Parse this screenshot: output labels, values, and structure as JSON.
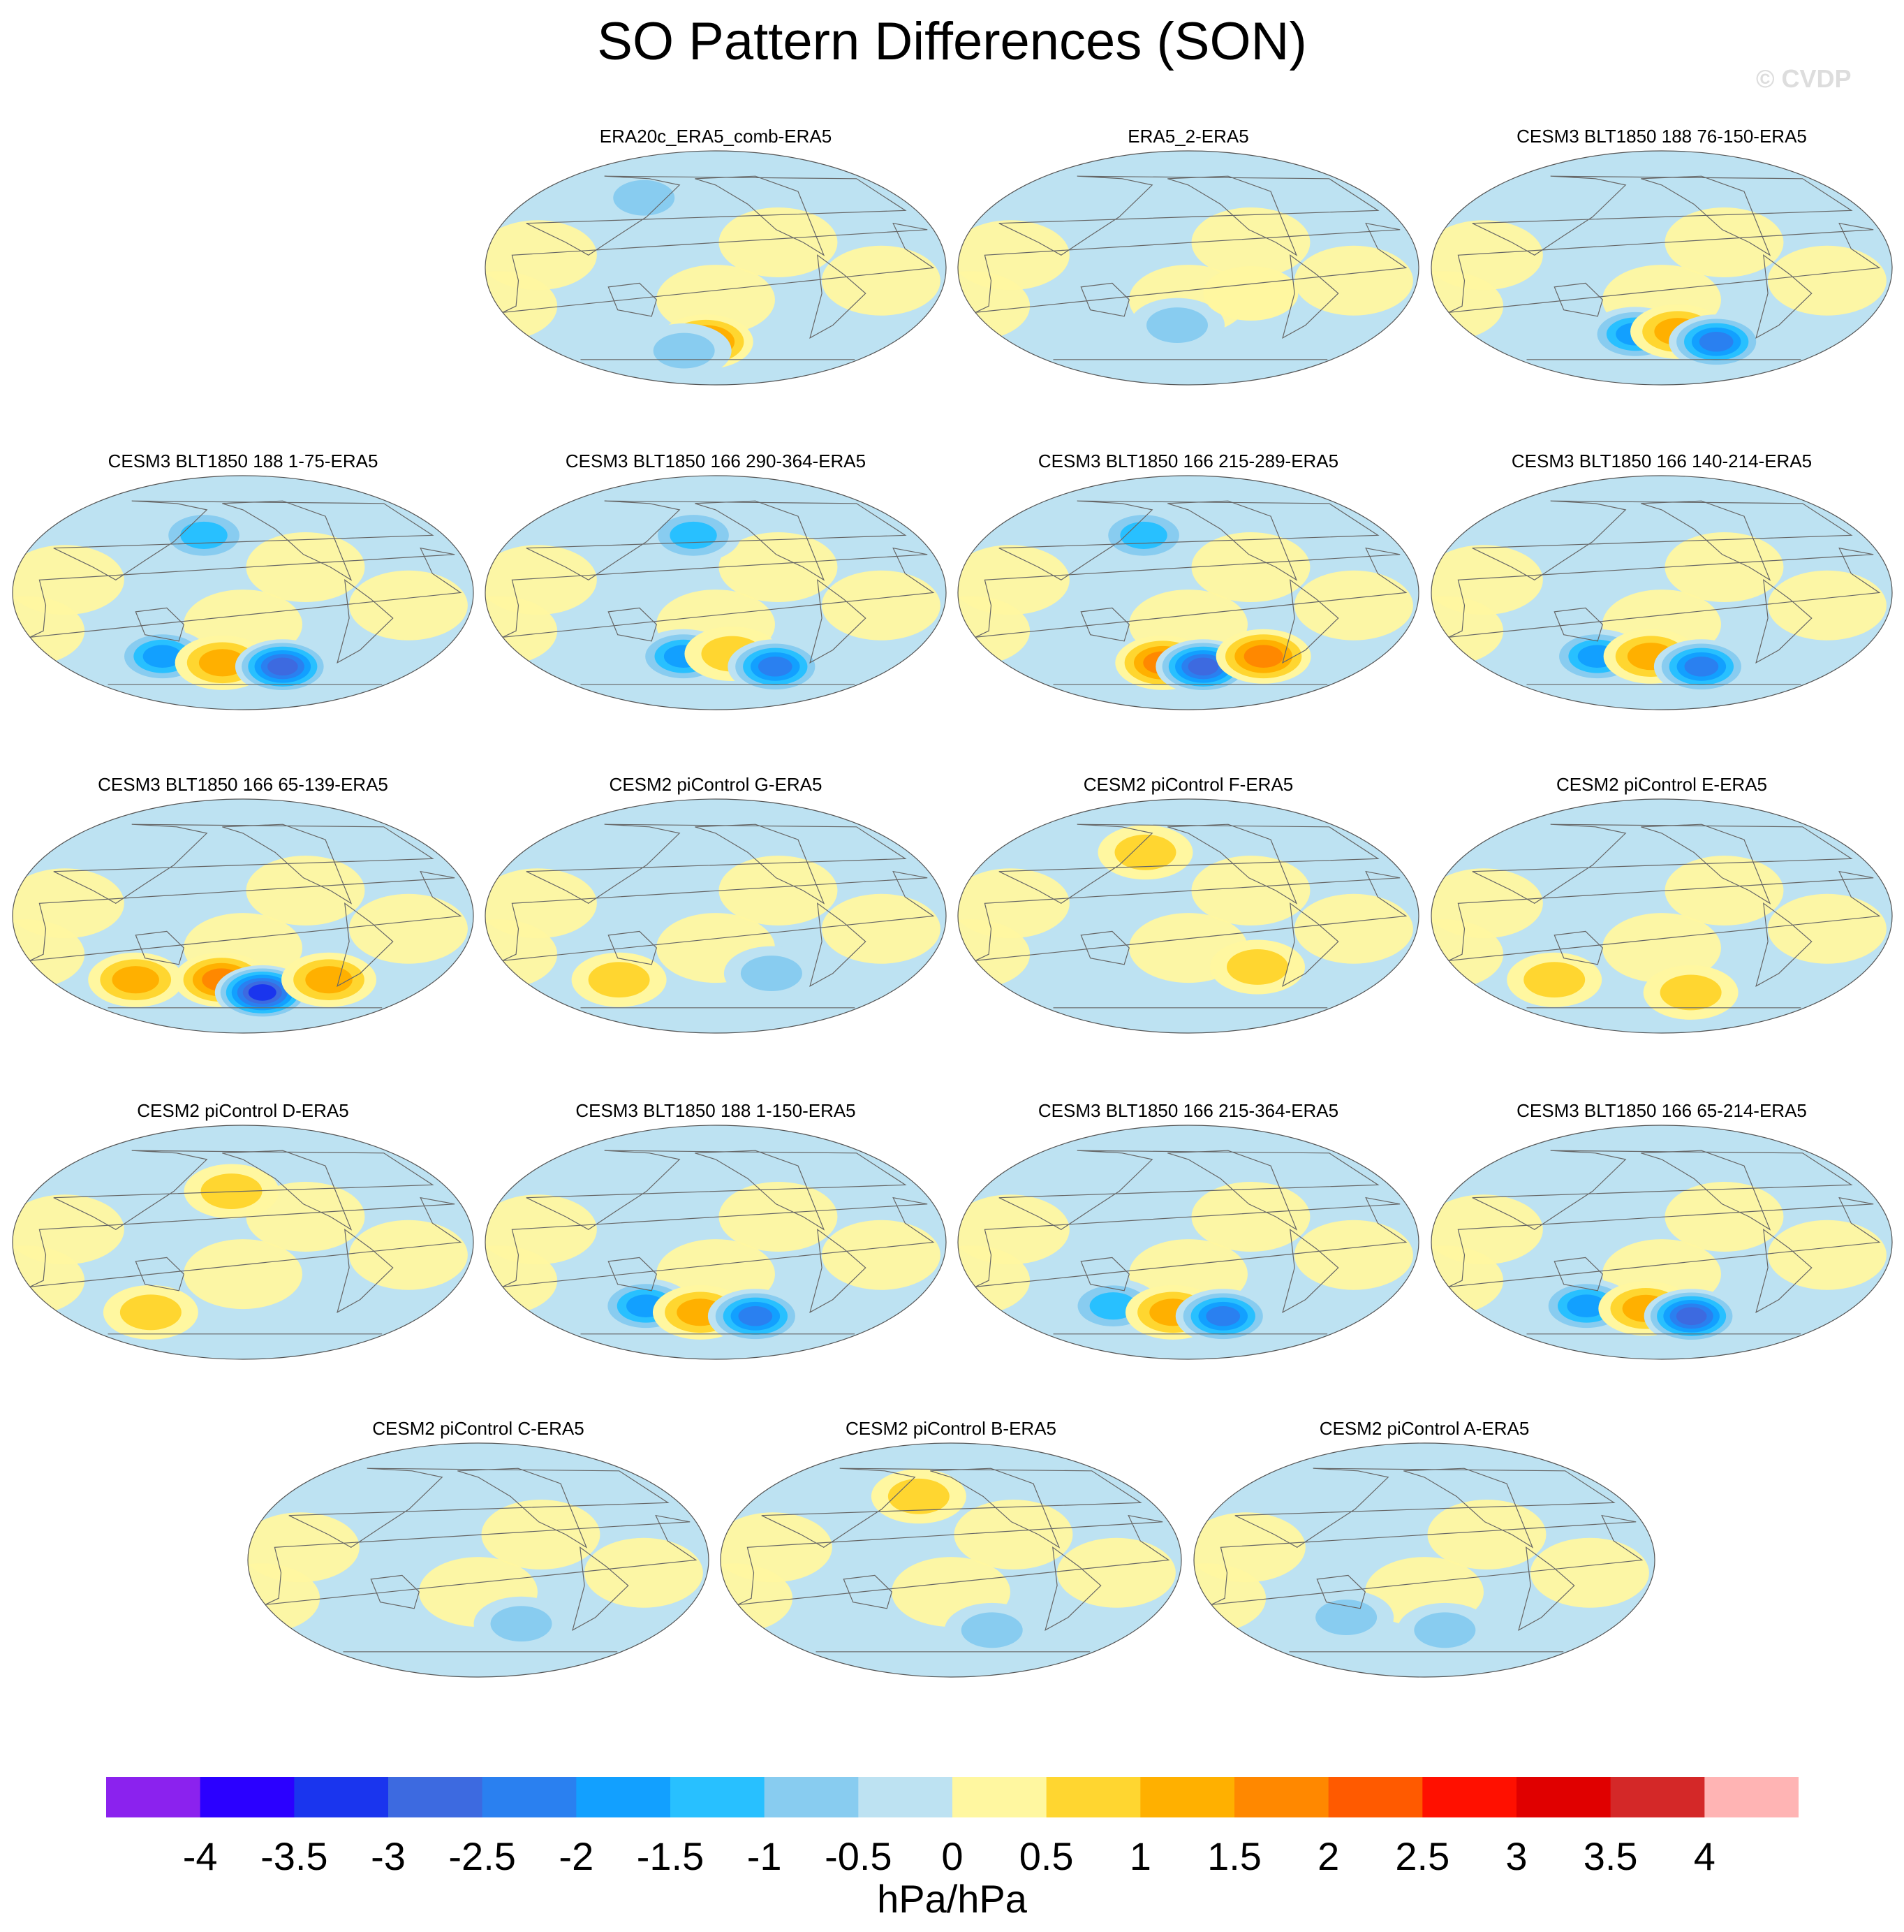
{
  "figure": {
    "title": "SO Pattern Differences (SON)",
    "watermark": "© CVDP",
    "units": "hPa/hPa"
  },
  "chart_data": {
    "type": "heatmap",
    "description_note": "Grid of Mollweide-style global maps showing sea level pressure pattern differences (SON) relative to ERA5",
    "panels": [
      {
        "title": "ERA20c_ERA5_comb-ERA5",
        "features": [
          {
            "lon": 190,
            "lat": -58,
            "value": 1.7
          },
          {
            "lon": 165,
            "lat": -65,
            "value": -0.7
          },
          {
            "lon": 130,
            "lat": 55,
            "value": -0.8
          }
        ]
      },
      {
        "title": "ERA5_2-ERA5",
        "features": [
          {
            "lon": 190,
            "lat": -45,
            "value": -0.6
          },
          {
            "lon": 250,
            "lat": -20,
            "value": 0.2
          }
        ]
      },
      {
        "title": "CESM3 BLT1850 188 76-150-ERA5",
        "features": [
          {
            "lon": 175,
            "lat": -52,
            "value": -1.6
          },
          {
            "lon": 215,
            "lat": -50,
            "value": 1.2
          },
          {
            "lon": 255,
            "lat": -58,
            "value": -2.1
          }
        ]
      },
      {
        "title": "CESM3 BLT1850 188 1-75-ERA5",
        "features": [
          {
            "lon": 125,
            "lat": -50,
            "value": -2.0
          },
          {
            "lon": 180,
            "lat": -55,
            "value": 1.4
          },
          {
            "lon": 240,
            "lat": -58,
            "value": -2.6
          },
          {
            "lon": 165,
            "lat": 45,
            "value": -1.2
          }
        ]
      },
      {
        "title": "CESM3 BLT1850 166 290-364-ERA5",
        "features": [
          {
            "lon": 170,
            "lat": -50,
            "value": -1.8
          },
          {
            "lon": 215,
            "lat": -48,
            "value": 1.0
          },
          {
            "lon": 260,
            "lat": -58,
            "value": -2.3
          },
          {
            "lon": 180,
            "lat": 45,
            "value": -1.1
          }
        ]
      },
      {
        "title": "CESM3 BLT1850 166 215-289-ERA5",
        "features": [
          {
            "lon": 175,
            "lat": -55,
            "value": 1.8
          },
          {
            "lon": 215,
            "lat": -58,
            "value": -3.0
          },
          {
            "lon": 270,
            "lat": -50,
            "value": 1.6
          },
          {
            "lon": 160,
            "lat": 45,
            "value": -1.1
          }
        ]
      },
      {
        "title": "CESM3 BLT1850 166 140-214-ERA5",
        "features": [
          {
            "lon": 140,
            "lat": -50,
            "value": -1.8
          },
          {
            "lon": 190,
            "lat": -50,
            "value": 1.4
          },
          {
            "lon": 240,
            "lat": -58,
            "value": -2.3
          }
        ]
      },
      {
        "title": "CESM3 BLT1850 166 65-139-ERA5",
        "features": [
          {
            "lon": 100,
            "lat": -50,
            "value": 1.1
          },
          {
            "lon": 180,
            "lat": -50,
            "value": 1.6
          },
          {
            "lon": 220,
            "lat": -60,
            "value": -3.2
          },
          {
            "lon": 280,
            "lat": -50,
            "value": 1.4
          }
        ]
      },
      {
        "title": "CESM2 piControl G-ERA5",
        "features": [
          {
            "lon": 110,
            "lat": -50,
            "value": 0.7
          },
          {
            "lon": 250,
            "lat": -45,
            "value": -0.7
          }
        ]
      },
      {
        "title": "CESM2 piControl F-ERA5",
        "features": [
          {
            "lon": 160,
            "lat": 50,
            "value": 0.7
          },
          {
            "lon": 260,
            "lat": -40,
            "value": 0.6
          }
        ]
      },
      {
        "title": "CESM2 piControl E-ERA5",
        "features": [
          {
            "lon": 100,
            "lat": -50,
            "value": 0.8
          },
          {
            "lon": 230,
            "lat": -60,
            "value": 0.9
          }
        ]
      },
      {
        "title": "CESM2 piControl D-ERA5",
        "features": [
          {
            "lon": 110,
            "lat": -55,
            "value": 0.7
          },
          {
            "lon": 190,
            "lat": 40,
            "value": 0.6
          }
        ]
      },
      {
        "title": "CESM3 BLT1850 188 1-150-ERA5",
        "features": [
          {
            "lon": 135,
            "lat": -50,
            "value": -1.6
          },
          {
            "lon": 185,
            "lat": -55,
            "value": 1.1
          },
          {
            "lon": 240,
            "lat": -58,
            "value": -2.1
          }
        ]
      },
      {
        "title": "CESM3 BLT1850 166 215-364-ERA5",
        "features": [
          {
            "lon": 130,
            "lat": -50,
            "value": -1.5
          },
          {
            "lon": 185,
            "lat": -55,
            "value": 1.2
          },
          {
            "lon": 235,
            "lat": -58,
            "value": -2.4
          }
        ]
      },
      {
        "title": "CESM3 BLT1850 166 65-214-ERA5",
        "features": [
          {
            "lon": 130,
            "lat": -50,
            "value": -1.8
          },
          {
            "lon": 185,
            "lat": -52,
            "value": 1.4
          },
          {
            "lon": 230,
            "lat": -58,
            "value": -2.9
          }
        ]
      },
      {
        "title": "CESM2 piControl C-ERA5",
        "features": [
          {
            "lon": 240,
            "lat": -50,
            "value": -0.8
          }
        ]
      },
      {
        "title": "CESM2 piControl B-ERA5",
        "features": [
          {
            "lon": 240,
            "lat": -55,
            "value": -1.0
          },
          {
            "lon": 170,
            "lat": 50,
            "value": 0.6
          }
        ]
      },
      {
        "title": "CESM2 piControl A-ERA5",
        "features": [
          {
            "lon": 220,
            "lat": -55,
            "value": -0.9
          },
          {
            "lon": 130,
            "lat": -45,
            "value": -0.7
          }
        ]
      }
    ],
    "colorbar": {
      "levels": [
        -4,
        -3.5,
        -3,
        -2.5,
        -2,
        -1.5,
        -1,
        -0.5,
        0,
        0.5,
        1,
        1.5,
        2,
        2.5,
        3,
        3.5,
        4
      ],
      "tick_labels": [
        "-4",
        "-3.5",
        "-3",
        "-2.5",
        "-2",
        "-1.5",
        "-1",
        "-0.5",
        "0",
        "0.5",
        "1",
        "1.5",
        "2",
        "2.5",
        "3",
        "3.5",
        "4"
      ],
      "colors": [
        "#8b22ee",
        "#2b00ff",
        "#1a35ee",
        "#3d6ae0",
        "#2a80f0",
        "#12a0ff",
        "#28c0ff",
        "#88ccf0",
        "#bde2f2",
        "#fff7a0",
        "#ffd630",
        "#ffb000",
        "#ff8800",
        "#ff5a00",
        "#ff1000",
        "#e00000",
        "#d42828",
        "#ffb4b4"
      ],
      "label": "hPa/hPa"
    }
  }
}
